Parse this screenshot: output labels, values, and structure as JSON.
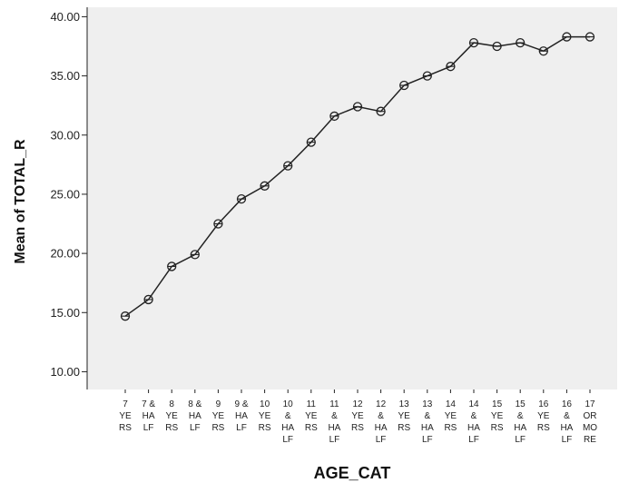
{
  "chart_data": {
    "type": "line",
    "title": "",
    "xlabel": "AGE_CAT",
    "ylabel": "Mean of TOTAL_R",
    "ylim": [
      8.5,
      40.8
    ],
    "yticks": [
      "10.00",
      "15.00",
      "20.00",
      "25.00",
      "30.00",
      "35.00",
      "40.00"
    ],
    "grid": false,
    "legend": "none",
    "plot_background": "#efefef",
    "line_color": "#222222",
    "marker": "open-circle",
    "categories": [
      [
        "7",
        "YE",
        "RS"
      ],
      [
        "7 &",
        "HA",
        "LF"
      ],
      [
        "8",
        "YE",
        "RS"
      ],
      [
        "8 &",
        "HA",
        "LF"
      ],
      [
        "9",
        "YE",
        "RS"
      ],
      [
        "9 &",
        "HA",
        "LF"
      ],
      [
        "10",
        "YE",
        "RS"
      ],
      [
        "10",
        "&",
        "HA",
        "LF"
      ],
      [
        "11",
        "YE",
        "RS"
      ],
      [
        "11",
        "&",
        "HA",
        "LF"
      ],
      [
        "12",
        "YE",
        "RS"
      ],
      [
        "12",
        "&",
        "HA",
        "LF"
      ],
      [
        "13",
        "YE",
        "RS"
      ],
      [
        "13",
        "&",
        "HA",
        "LF"
      ],
      [
        "14",
        "YE",
        "RS"
      ],
      [
        "14",
        "&",
        "HA",
        "LF"
      ],
      [
        "15",
        "YE",
        "RS"
      ],
      [
        "15",
        "&",
        "HA",
        "LF"
      ],
      [
        "16",
        "YE",
        "RS"
      ],
      [
        "16",
        "&",
        "HA",
        "LF"
      ],
      [
        "17",
        "OR",
        "MO",
        "RE"
      ]
    ],
    "values": [
      14.7,
      16.1,
      18.9,
      19.9,
      22.5,
      24.6,
      25.7,
      27.4,
      29.4,
      31.6,
      32.4,
      32.0,
      34.2,
      35.0,
      35.8,
      37.8,
      37.5,
      37.8,
      37.1,
      38.3,
      38.3
    ]
  }
}
